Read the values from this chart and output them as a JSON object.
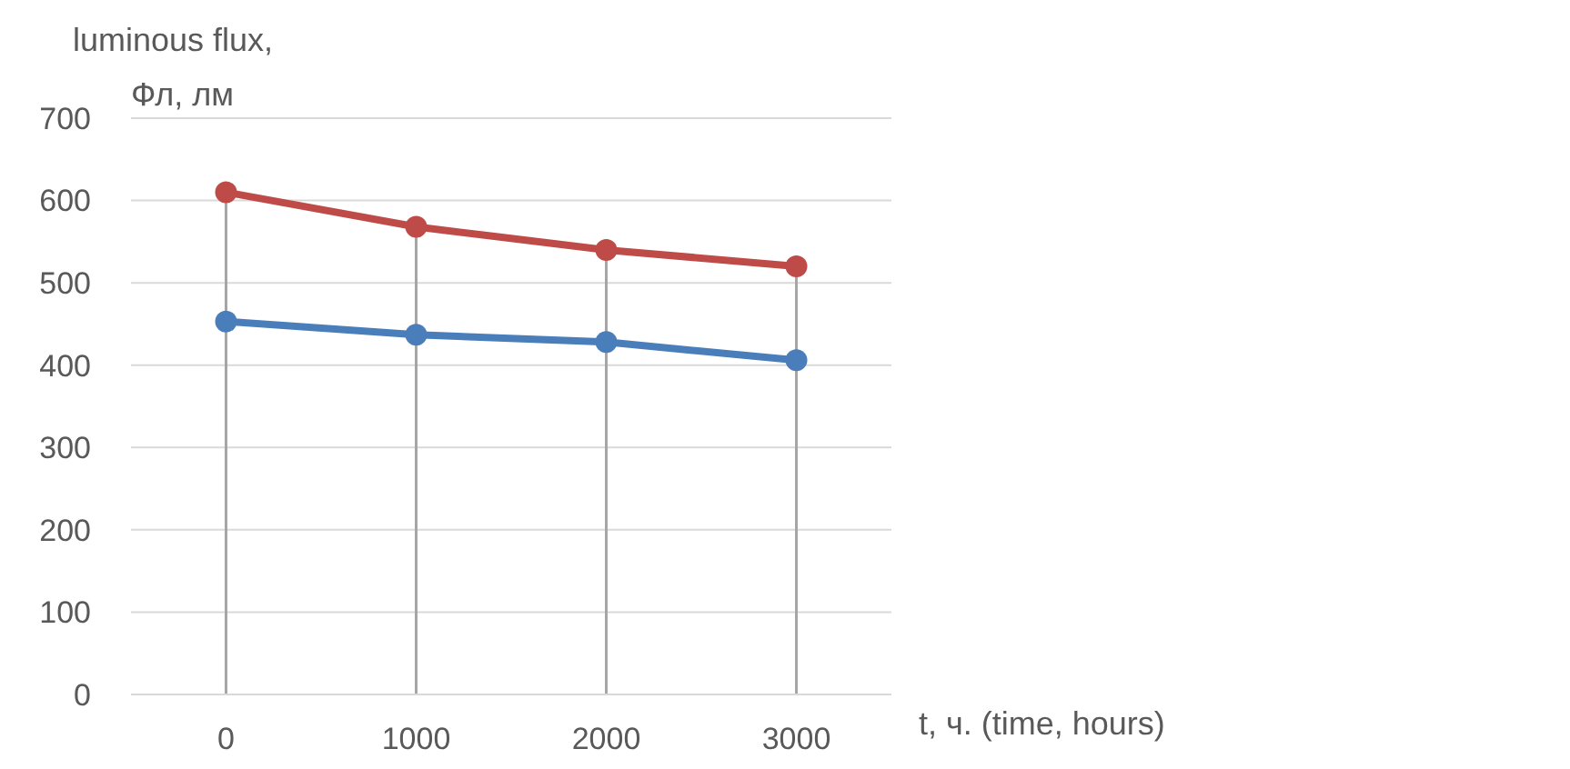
{
  "chart_data": {
    "type": "line",
    "ylabel": "luminous flux,\nФл, лм",
    "xlabel": "t, ч. (time, hours)",
    "categories": [
      "0",
      "1000",
      "2000",
      "3000"
    ],
    "series": [
      {
        "color": "#4a7ebb",
        "values": [
          453,
          437,
          428,
          406
        ]
      },
      {
        "color": "#be4b48",
        "values": [
          610,
          568,
          540,
          520
        ]
      }
    ],
    "ylim": [
      0,
      700
    ],
    "yticks": [
      0,
      100,
      200,
      300,
      400,
      500,
      600,
      700
    ],
    "grid": true,
    "marker": "circle",
    "line_style": "solid",
    "legend": false
  }
}
